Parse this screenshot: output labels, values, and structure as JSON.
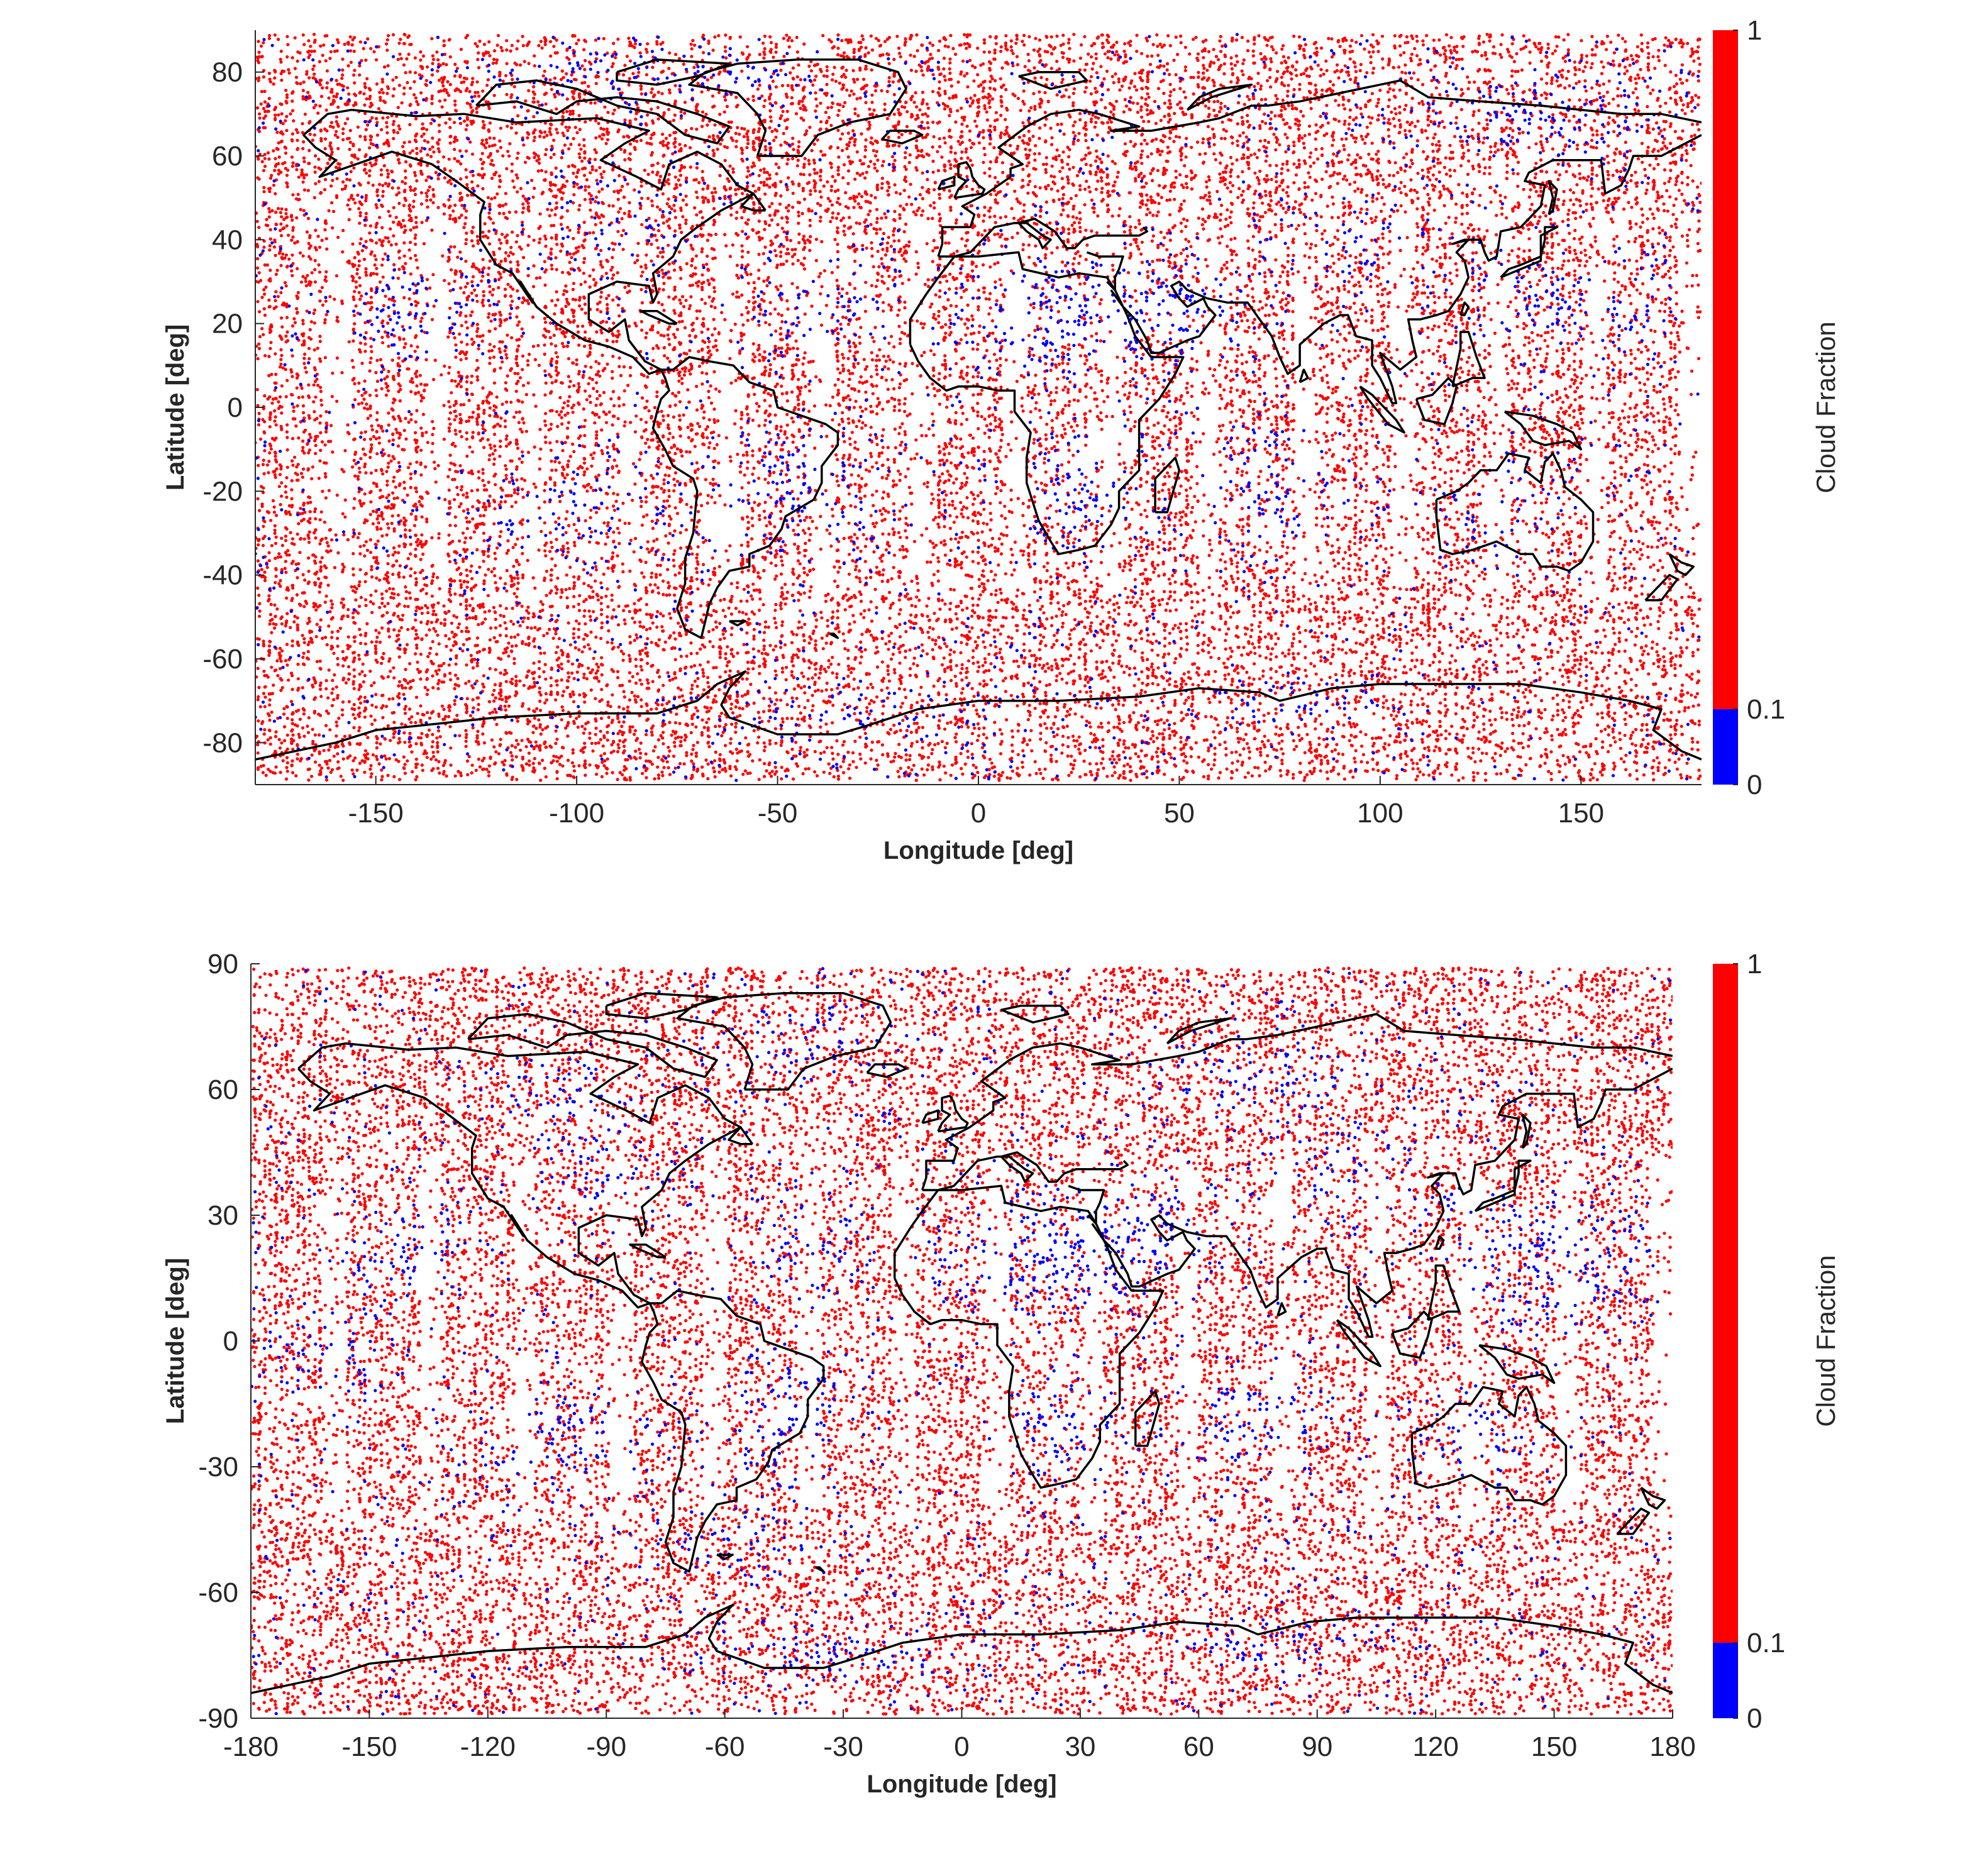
{
  "chart_data": [
    {
      "type": "scatter",
      "title": "",
      "xlabel": "Longitude [deg]",
      "ylabel": "Latitude [deg]",
      "xlim": [
        -180,
        180
      ],
      "ylim": [
        -90,
        90
      ],
      "xticks": [
        "-150",
        "-100",
        "-50",
        "0",
        "50",
        "100",
        "150"
      ],
      "xtick_values": [
        -150,
        -100,
        -50,
        0,
        50,
        100,
        150
      ],
      "yticks": [
        "-80",
        "-60",
        "-40",
        "-20",
        "0",
        "20",
        "40",
        "60",
        "80"
      ],
      "ytick_values": [
        -80,
        -60,
        -40,
        -20,
        0,
        20,
        40,
        60,
        80
      ],
      "grid": false,
      "overlay": "coastlines",
      "colorbar": {
        "label": "Cloud Fraction",
        "ticks": [
          "0",
          "0.1",
          "1"
        ],
        "tick_values": [
          0,
          0.1,
          1
        ],
        "colors": [
          {
            "from": 0,
            "to": 0.1,
            "color": "#0000ff"
          },
          {
            "from": 0.1,
            "to": 1,
            "color": "#ff0000"
          }
        ]
      }
    },
    {
      "type": "scatter",
      "title": "",
      "xlabel": "Longitude [deg]",
      "ylabel": "Latitude [deg]",
      "xlim": [
        -180,
        180
      ],
      "ylim": [
        -90,
        90
      ],
      "xticks": [
        "-180",
        "-150",
        "-120",
        "-90",
        "-60",
        "-30",
        "0",
        "30",
        "60",
        "90",
        "120",
        "150",
        "180"
      ],
      "xtick_values": [
        -180,
        -150,
        -120,
        -90,
        -60,
        -30,
        0,
        30,
        60,
        90,
        120,
        150,
        180
      ],
      "yticks": [
        "-90",
        "-60",
        "-30",
        "0",
        "30",
        "60",
        "90"
      ],
      "ytick_values": [
        -90,
        -60,
        -30,
        0,
        30,
        60,
        90
      ],
      "grid": false,
      "overlay": "coastlines",
      "colorbar": {
        "label": "Cloud Fraction",
        "ticks": [
          "0",
          "0.1",
          "1"
        ],
        "tick_values": [
          0,
          0.1,
          1
        ],
        "colors": [
          {
            "from": 0,
            "to": 0.1,
            "color": "#0000ff"
          },
          {
            "from": 0.1,
            "to": 1,
            "color": "#ff0000"
          }
        ]
      }
    }
  ],
  "colors": {
    "cloudy": "#ff0000",
    "clear": "#0000ff",
    "coastline": "#000000"
  }
}
